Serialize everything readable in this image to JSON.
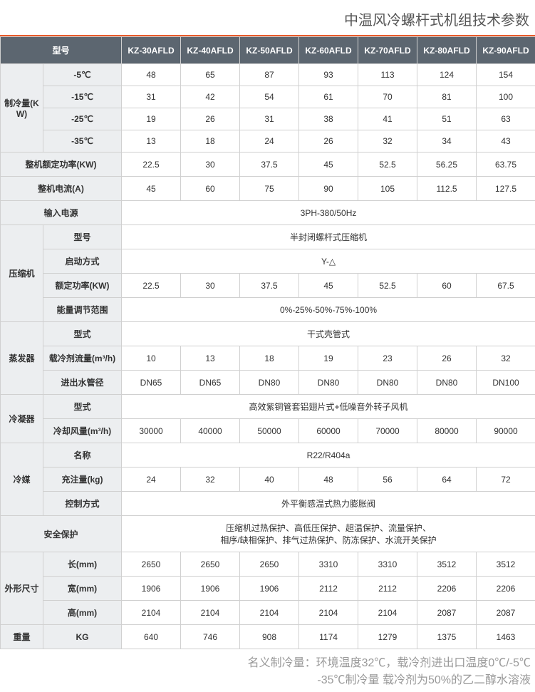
{
  "title": "中温风冷螺杆式机组技术参数",
  "colors": {
    "accent": "#e85a2a",
    "header_bg": "#5c6670",
    "header_fg": "#ffffff",
    "label_bg": "#eceef0",
    "border": "#d0d0d0",
    "text": "#333333",
    "footnote": "#999999"
  },
  "header": {
    "model_label": "型号",
    "models": [
      "KZ-30AFLD",
      "KZ-40AFLD",
      "KZ-50AFLD",
      "KZ-60AFLD",
      "KZ-70AFLD",
      "KZ-80AFLD",
      "KZ-90AFLD"
    ]
  },
  "cooling": {
    "group": "制冷量(KW)",
    "rows": [
      {
        "temp": "-5℃",
        "vals": [
          "48",
          "65",
          "87",
          "93",
          "113",
          "124",
          "154"
        ]
      },
      {
        "temp": "-15℃",
        "vals": [
          "31",
          "42",
          "54",
          "61",
          "70",
          "81",
          "100"
        ]
      },
      {
        "temp": "-25℃",
        "vals": [
          "19",
          "26",
          "31",
          "38",
          "41",
          "51",
          "63"
        ]
      },
      {
        "temp": "-35℃",
        "vals": [
          "13",
          "18",
          "24",
          "26",
          "32",
          "34",
          "43"
        ]
      }
    ]
  },
  "rated_power": {
    "label": "整机额定功率(KW)",
    "vals": [
      "22.5",
      "30",
      "37.5",
      "45",
      "52.5",
      "56.25",
      "63.75"
    ]
  },
  "current": {
    "label": "整机电流(A)",
    "vals": [
      "45",
      "60",
      "75",
      "90",
      "105",
      "112.5",
      "127.5"
    ]
  },
  "power_input": {
    "label": "输入电源",
    "value": "3PH-380/50Hz"
  },
  "compressor": {
    "group": "压缩机",
    "type": {
      "label": "型号",
      "value": "半封闭螺杆式压缩机"
    },
    "start": {
      "label": "启动方式",
      "value": "Y-△"
    },
    "rated": {
      "label": "额定功率(KW)",
      "vals": [
        "22.5",
        "30",
        "37.5",
        "45",
        "52.5",
        "60",
        "67.5"
      ]
    },
    "capacity": {
      "label": "能量调节范围",
      "value": "0%-25%-50%-75%-100%"
    }
  },
  "evaporator": {
    "group": "蒸发器",
    "type": {
      "label": "型式",
      "value": "干式壳管式"
    },
    "flow": {
      "label": "载冷剂流量(m³/h)",
      "vals": [
        "10",
        "13",
        "18",
        "19",
        "23",
        "26",
        "32"
      ]
    },
    "pipe": {
      "label": "进出水管径",
      "vals": [
        "DN65",
        "DN65",
        "DN80",
        "DN80",
        "DN80",
        "DN80",
        "DN100"
      ]
    }
  },
  "condenser": {
    "group": "冷凝器",
    "type": {
      "label": "型式",
      "value": "高效紫铜管套铝翅片式+低噪音外转子风机"
    },
    "air": {
      "label": "冷却风量(m³/h)",
      "vals": [
        "30000",
        "40000",
        "50000",
        "60000",
        "70000",
        "80000",
        "90000"
      ]
    }
  },
  "refrigerant": {
    "group": "冷媒",
    "name": {
      "label": "名称",
      "value": "R22/R404a"
    },
    "charge": {
      "label": "充注量(kg)",
      "vals": [
        "24",
        "32",
        "40",
        "48",
        "56",
        "64",
        "72"
      ]
    },
    "control": {
      "label": "控制方式",
      "value": "外平衡感温式热力膨胀阀"
    }
  },
  "safety": {
    "label": "安全保护",
    "line1": "压缩机过热保护、高低压保护、超温保护、流量保护、",
    "line2": "相序/缺相保护、排气过热保护、防冻保护、水流开关保护"
  },
  "dims": {
    "group": "外形尺寸",
    "length": {
      "label": "长(mm)",
      "vals": [
        "2650",
        "2650",
        "2650",
        "3310",
        "3310",
        "3512",
        "3512"
      ]
    },
    "width": {
      "label": "宽(mm)",
      "vals": [
        "1906",
        "1906",
        "1906",
        "2112",
        "2112",
        "2206",
        "2206"
      ]
    },
    "height": {
      "label": "高(mm)",
      "vals": [
        "2104",
        "2104",
        "2104",
        "2104",
        "2104",
        "2087",
        "2087"
      ]
    }
  },
  "weight": {
    "group": "重量",
    "label": "KG",
    "vals": [
      "640",
      "746",
      "908",
      "1174",
      "1279",
      "1375",
      "1463"
    ]
  },
  "footnote": {
    "line1": "名义制冷量：环境温度32℃，载冷剂进出口温度0℃/-5℃",
    "line2": "-35℃制冷量   载冷剂为50%的乙二醇水溶液"
  }
}
